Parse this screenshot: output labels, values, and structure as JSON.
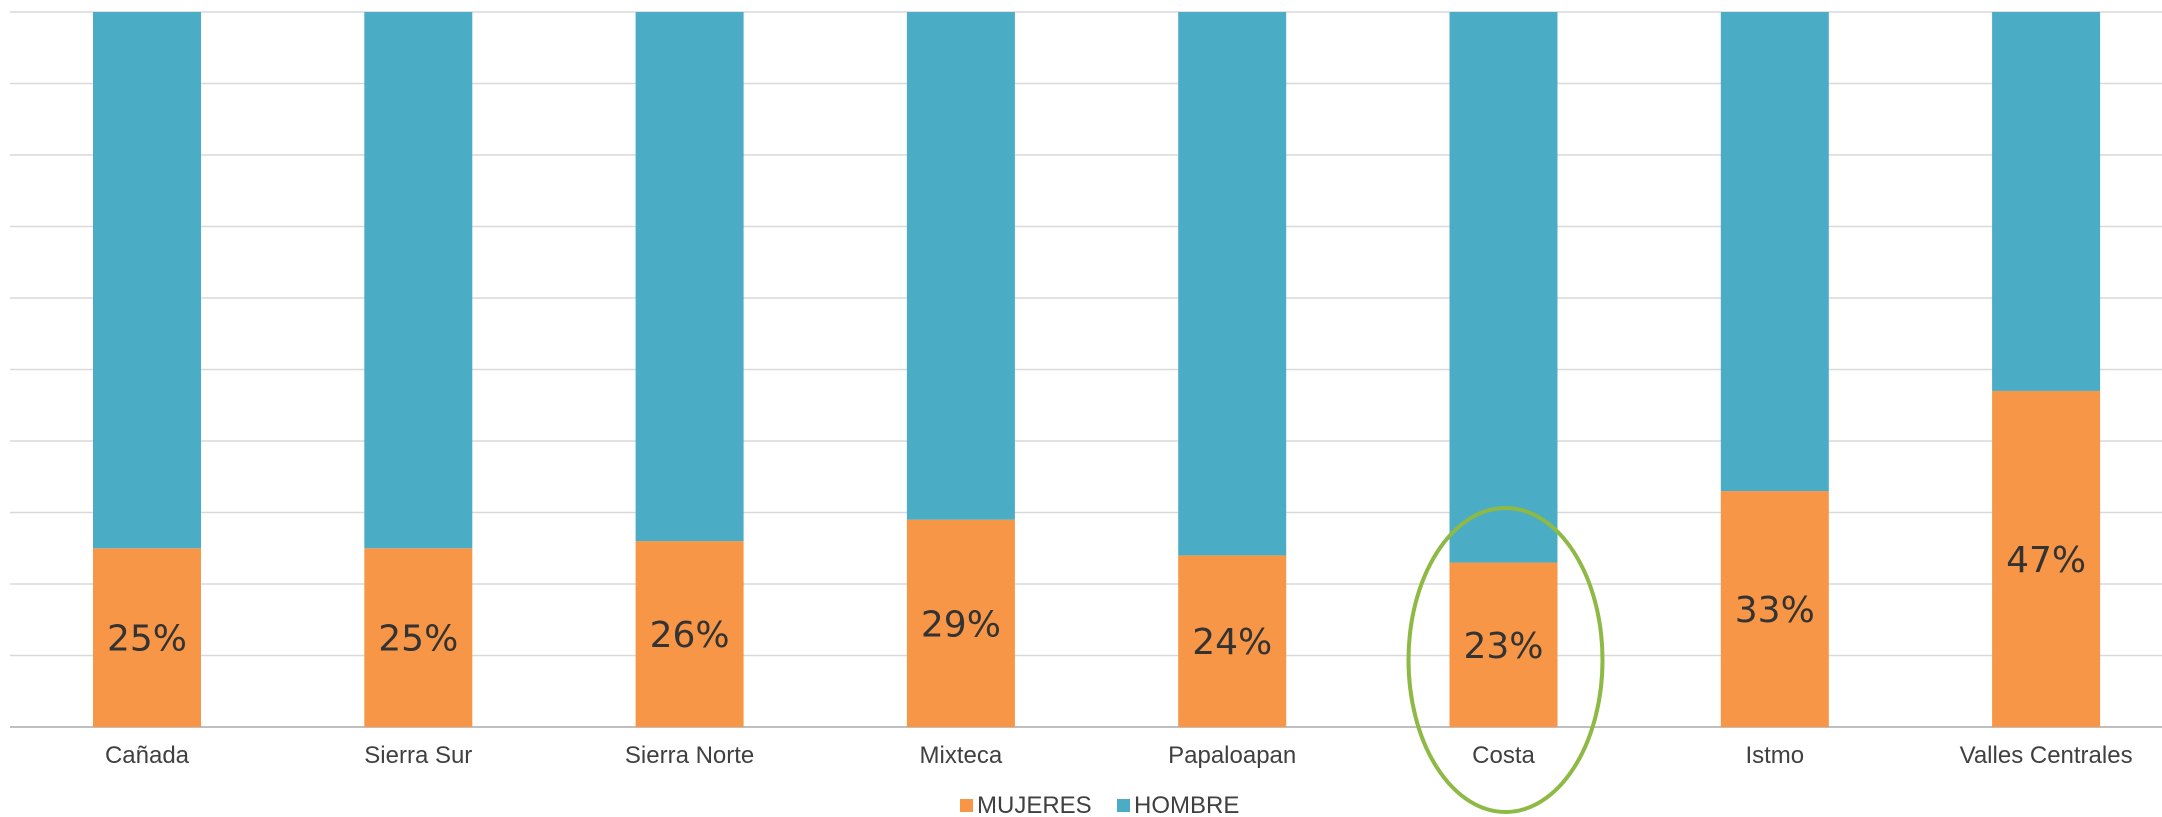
{
  "chart_data": {
    "type": "bar",
    "stacked": true,
    "percent_stacked": true,
    "categories": [
      "Cañada",
      "Sierra Sur",
      "Sierra Norte",
      "Mixteca",
      "Papaloapan",
      "Costa",
      "Istmo",
      "Valles Centrales"
    ],
    "series": [
      {
        "name": "MUJERES",
        "color": "#f79646",
        "values": [
          25,
          25,
          26,
          29,
          24,
          23,
          33,
          47
        ]
      },
      {
        "name": "HOMBRE",
        "color": "#4bacc6",
        "values": [
          75,
          75,
          74,
          71,
          76,
          77,
          67,
          53
        ]
      }
    ],
    "data_labels": [
      "25%",
      "25%",
      "26%",
      "29%",
      "24%",
      "23%",
      "33%",
      "47%"
    ],
    "ylim": [
      0,
      100
    ],
    "grid": true,
    "legend": "bottom",
    "highlight": {
      "category": "Costa",
      "shape": "ellipse",
      "color": "#8db944"
    },
    "title": "",
    "xlabel": "",
    "ylabel": ""
  }
}
